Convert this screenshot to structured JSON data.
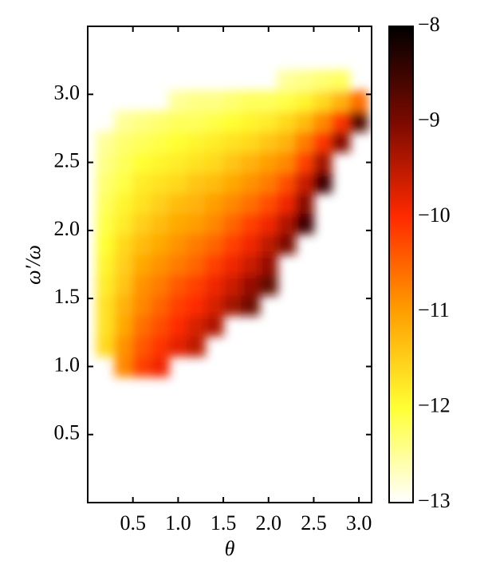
{
  "chart_data": {
    "type": "heatmap",
    "xlabel": "θ",
    "ylabel": "ω′/ω",
    "x": [
      0.2,
      0.4,
      0.6,
      0.8,
      1.0,
      1.2,
      1.4,
      1.6,
      1.8,
      2.0,
      2.2,
      2.4,
      2.6,
      2.8,
      3.0
    ],
    "y": [
      1.0,
      1.15,
      1.3,
      1.45,
      1.6,
      1.75,
      1.9,
      2.05,
      2.2,
      2.35,
      2.5,
      2.65,
      2.8,
      2.95,
      3.1
    ],
    "z": [
      [
        null,
        -10.8,
        -10.2,
        -9.9,
        null,
        null,
        null,
        null,
        null,
        null,
        null,
        null,
        null,
        null,
        null
      ],
      [
        -11.6,
        -10.9,
        -10.4,
        -10.1,
        -9.8,
        -9.5,
        null,
        null,
        null,
        null,
        null,
        null,
        null,
        null,
        null
      ],
      [
        -11.7,
        -11.1,
        -10.6,
        -10.3,
        -10.0,
        -9.7,
        -9.4,
        null,
        null,
        null,
        null,
        null,
        null,
        null,
        null
      ],
      [
        -11.7,
        -11.2,
        -10.8,
        -10.5,
        -10.2,
        -10.0,
        -9.7,
        -9.3,
        -8.9,
        null,
        null,
        null,
        null,
        null,
        null
      ],
      [
        -11.8,
        -11.4,
        -10.9,
        -10.7,
        -10.4,
        -10.2,
        -9.9,
        -9.6,
        -9.2,
        -8.8,
        null,
        null,
        null,
        null,
        null
      ],
      [
        -11.9,
        -11.5,
        -11.1,
        -10.9,
        -10.7,
        -10.5,
        -10.2,
        -9.9,
        -9.6,
        -9.2,
        null,
        null,
        null,
        null,
        null
      ],
      [
        -12.0,
        -11.6,
        -11.3,
        -11.1,
        -10.9,
        -10.7,
        -10.5,
        -10.2,
        -9.9,
        -9.5,
        -9.0,
        null,
        null,
        null,
        null
      ],
      [
        -12.1,
        -11.8,
        -11.5,
        -11.3,
        -11.1,
        -11.0,
        -10.8,
        -10.5,
        -10.2,
        -9.9,
        -9.4,
        -8.5,
        null,
        null,
        null
      ],
      [
        -12.2,
        -11.9,
        -11.7,
        -11.5,
        -11.3,
        -11.2,
        -11.0,
        -10.8,
        -10.6,
        -10.3,
        -9.9,
        -9.1,
        null,
        null,
        null
      ],
      [
        -12.3,
        -12.1,
        -11.8,
        -11.7,
        -11.6,
        -11.4,
        -11.3,
        -11.1,
        -10.9,
        -10.7,
        -10.3,
        -9.6,
        -8.5,
        null,
        null
      ],
      [
        -12.4,
        -12.2,
        -12.0,
        -11.9,
        -11.8,
        -11.7,
        -11.6,
        -11.4,
        -11.2,
        -11.0,
        -10.8,
        -10.2,
        -9.3,
        null,
        null
      ],
      [
        -12.5,
        -12.3,
        -12.2,
        -12.1,
        -12.0,
        -11.9,
        -11.8,
        -11.7,
        -11.6,
        -11.4,
        -11.2,
        -10.7,
        -10.1,
        -9.1,
        null
      ],
      [
        null,
        -12.5,
        -12.4,
        -12.3,
        -12.2,
        -12.2,
        -12.1,
        -12.0,
        -11.9,
        -11.8,
        -11.6,
        -11.3,
        -10.8,
        -10.1,
        -8.7
      ],
      [
        null,
        null,
        null,
        null,
        -12.5,
        -12.4,
        -12.4,
        -12.3,
        -12.2,
        -12.2,
        -12.1,
        -11.9,
        -11.6,
        -11.2,
        -10.6
      ],
      [
        null,
        null,
        null,
        null,
        null,
        null,
        null,
        null,
        null,
        null,
        -12.5,
        -12.4,
        -12.3,
        -12.2,
        null
      ]
    ],
    "xlim": [
      0,
      3.14
    ],
    "ylim": [
      0,
      3.5
    ],
    "xticks": [
      0.5,
      {
        "value": 1.0,
        "label": "1.0"
      },
      1.5,
      {
        "value": 2.0,
        "label": "2.0"
      },
      2.5,
      {
        "value": 3.0,
        "label": "3.0"
      }
    ],
    "yticks": [
      0.5,
      {
        "value": 1.0,
        "label": "1.0"
      },
      1.5,
      {
        "value": 2.0,
        "label": "2.0"
      },
      2.5,
      {
        "value": 3.0,
        "label": "3.0"
      }
    ],
    "zlim": [
      -13,
      -8
    ],
    "zticks": [
      {
        "value": -8,
        "label": "−8"
      },
      {
        "value": -9,
        "label": "−9"
      },
      {
        "value": -10,
        "label": "−10"
      },
      {
        "value": -11,
        "label": "−11"
      },
      {
        "value": -12,
        "label": "−12"
      },
      {
        "value": -13,
        "label": "−13"
      }
    ],
    "colormap": [
      "#ffffff",
      "#ffff33",
      "#ff9f00",
      "#ff2a00",
      "#7a0a00",
      "#000000"
    ]
  }
}
